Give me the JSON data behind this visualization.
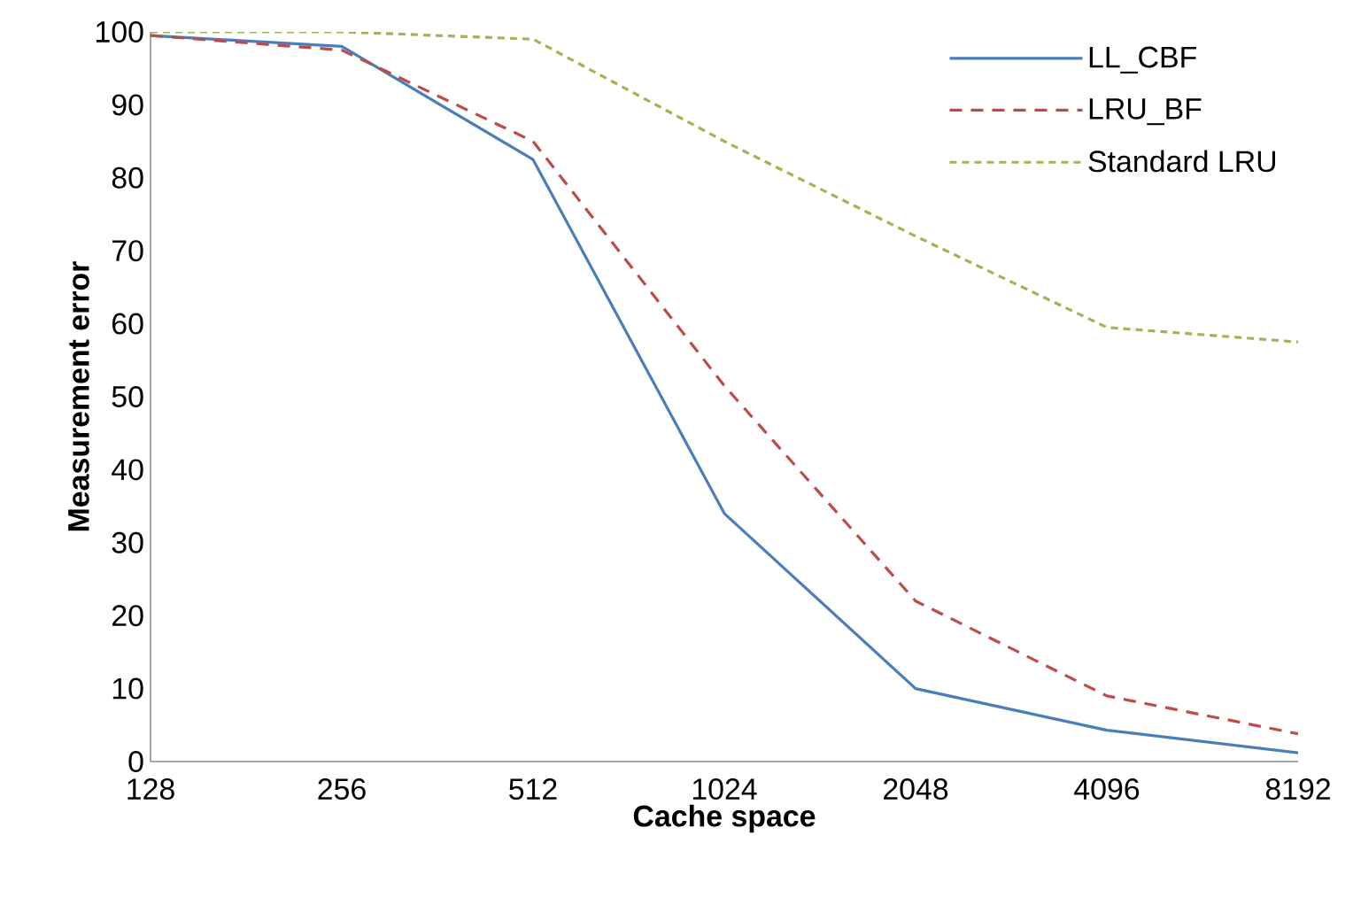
{
  "chart_data": {
    "type": "line",
    "xlabel": "Cache space",
    "ylabel": "Measurement error",
    "categories": [
      "128",
      "256",
      "512",
      "1024",
      "2048",
      "4096",
      "8192"
    ],
    "ylim": [
      0,
      100
    ],
    "yticks": [
      0,
      10,
      20,
      30,
      40,
      50,
      60,
      70,
      80,
      90,
      100
    ],
    "grid": false,
    "legend": "top right",
    "marker": "none",
    "series": [
      {
        "name": "LL_CBF",
        "color": "#4a7ebb",
        "line_style": "solid",
        "values": [
          99.5,
          98,
          82.5,
          34,
          10,
          4.3,
          1.2
        ]
      },
      {
        "name": "LRU_BF",
        "color": "#be4b48",
        "line_style": "dashed",
        "values": [
          99.5,
          97.5,
          85,
          51.5,
          22,
          9,
          3.8
        ]
      },
      {
        "name": "Standard LRU",
        "color": "#98b954",
        "line_style": "dashed",
        "values": [
          100,
          100,
          99,
          85,
          72,
          59.5,
          57.5
        ]
      }
    ]
  }
}
